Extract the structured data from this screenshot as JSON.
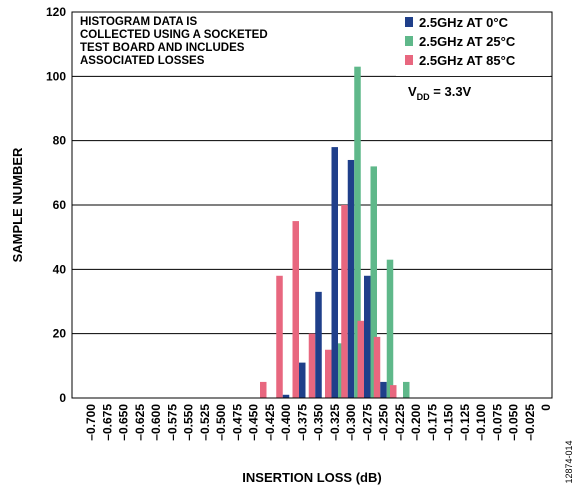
{
  "chart_data": {
    "type": "bar",
    "xlabel": "INSERTION LOSS (dB)",
    "ylabel": "SAMPLE NUMBER",
    "ylim": [
      0,
      120
    ],
    "yticks": [
      "0",
      "20",
      "40",
      "60",
      "80",
      "100",
      "120"
    ],
    "grid": "horizontal",
    "legend_position": "top-right",
    "annotation": [
      "HISTOGRAM DATA IS",
      "COLLECTED USING A SOCKETED",
      "TEST BOARD AND INCLUDES",
      "ASSOCIATED LOSSES"
    ],
    "condition": {
      "prefix": "V",
      "subscript": "DD",
      "suffix": " = 3.3V"
    },
    "figure_id": "12874-014",
    "categories": [
      "–0.700",
      "–0.675",
      "–0.650",
      "–0.625",
      "–0.600",
      "–0.575",
      "–0.550",
      "–0.525",
      "–0.500",
      "–0.475",
      "–0.450",
      "–0.425",
      "–0.400",
      "–0.375",
      "–0.350",
      "–0.325",
      "–0.300",
      "–0.275",
      "–0.250",
      "–0.225",
      "–0.200",
      "–0.175",
      "–0.150",
      "–0.125",
      "–0.100",
      "–0.075",
      "–0.050",
      "–0.025",
      "0"
    ],
    "series": [
      {
        "name": "2.5GHz AT 0°C",
        "color": "#1f3f8a",
        "values": [
          0,
          0,
          0,
          0,
          0,
          0,
          0,
          0,
          0,
          0,
          0,
          0,
          1,
          11,
          33,
          78,
          74,
          38,
          5,
          0,
          0,
          0,
          0,
          0,
          0,
          0,
          0,
          0,
          0
        ]
      },
      {
        "name": "2.5GHz AT 25°C",
        "color": "#5fb88a",
        "values": [
          0,
          0,
          0,
          0,
          0,
          0,
          0,
          0,
          0,
          0,
          0,
          0,
          0,
          0,
          0,
          17,
          103,
          72,
          43,
          5,
          0,
          0,
          0,
          0,
          0,
          0,
          0,
          0,
          0
        ]
      },
      {
        "name": "2.5GHz AT 85°C",
        "color": "#e8677f",
        "values": [
          0,
          0,
          0,
          0,
          0,
          0,
          0,
          0,
          0,
          0,
          0,
          5,
          38,
          55,
          20,
          15,
          60,
          24,
          19,
          4,
          0,
          0,
          0,
          0,
          0,
          0,
          0,
          0,
          0
        ]
      }
    ]
  }
}
